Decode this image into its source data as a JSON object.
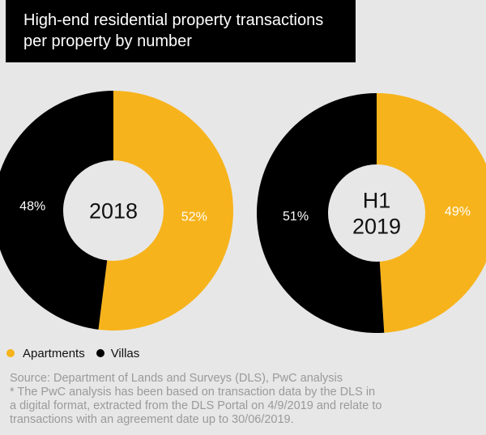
{
  "title_lines": [
    "High-end residential property transactions",
    "per property by number"
  ],
  "colors": {
    "apartments": "#f7b31b",
    "villas": "#000000",
    "hole": "#e7e7e7"
  },
  "legend": {
    "apartments": "Apartments",
    "villas": "Villas"
  },
  "footnote": {
    "source": "Source: Department of Lands and Surveys (DLS), PwC analysis",
    "note_lines": [
      "* The PwC analysis has been based on transaction data by the DLS in",
      "a digital format, extracted from the DLS Portal on 4/9/2019 and relate to",
      "transactions with an agreement  date up to 30/06/2019."
    ]
  },
  "chart_data": [
    {
      "type": "pie",
      "center_label": [
        "2018"
      ],
      "categories": [
        "Apartments",
        "Villas"
      ],
      "values": [
        52,
        48
      ],
      "value_labels": [
        "52%",
        "48%"
      ]
    },
    {
      "type": "pie",
      "center_label": [
        "H1",
        "2019"
      ],
      "categories": [
        "Apartments",
        "Villas"
      ],
      "values": [
        49,
        51
      ],
      "value_labels": [
        "49%",
        "51%"
      ]
    }
  ]
}
